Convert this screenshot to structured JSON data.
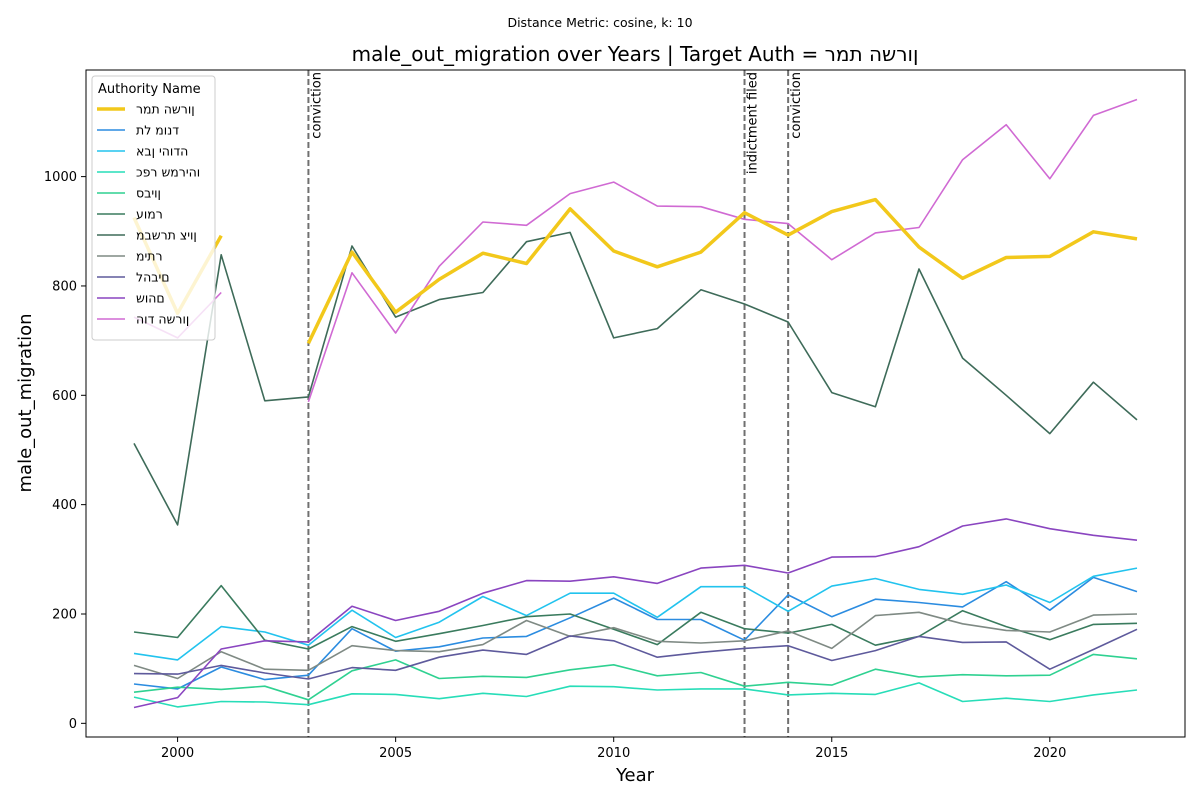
{
  "chart_data": {
    "type": "line",
    "suptitle": "Distance Metric: cosine, k: 10",
    "title": "male_out_migration over Years | Target Auth = ןורשה תמר",
    "xlabel": "Year",
    "ylabel": "male_out_migration",
    "xlim": [
      1997.9,
      2023.1
    ],
    "ylim": [
      -25,
      1195
    ],
    "xticks": [
      2000,
      2005,
      2010,
      2015,
      2020
    ],
    "yticks": [
      0,
      200,
      400,
      600,
      800,
      1000
    ],
    "grid": false,
    "legend": {
      "title": "Authority Name",
      "placement": "top-left"
    },
    "events": [
      {
        "x": 2003,
        "label": "conviction"
      },
      {
        "x": 2013,
        "label": "indictment filed"
      },
      {
        "x": 2014,
        "label": "conviction"
      }
    ],
    "x": [
      1999,
      2000,
      2001,
      2002,
      2003,
      2004,
      2005,
      2006,
      2007,
      2008,
      2009,
      2010,
      2011,
      2012,
      2013,
      2014,
      2015,
      2016,
      2017,
      2018,
      2019,
      2020,
      2021,
      2022
    ],
    "series": [
      {
        "name": "ןורשה תמר",
        "color": "#f2c81b",
        "target": true,
        "values": [
          925,
          750,
          892,
          null,
          695,
          862,
          752,
          812,
          860,
          841,
          941,
          864,
          835,
          862,
          934,
          893,
          936,
          958,
          871,
          814,
          852,
          854,
          899,
          886
        ]
      },
      {
        "name": "דנומ לת",
        "color": "#2b8ce0",
        "values": [
          72,
          63,
          103,
          80,
          88,
          173,
          132,
          140,
          156,
          159,
          193,
          229,
          190,
          190,
          152,
          235,
          195,
          227,
          221,
          213,
          259,
          207,
          267,
          241
        ]
      },
      {
        "name": "הדוהי ןבא",
        "color": "#22c3ee",
        "values": [
          128,
          116,
          177,
          167,
          143,
          207,
          157,
          185,
          232,
          197,
          238,
          238,
          194,
          250,
          250,
          205,
          251,
          265,
          245,
          236,
          253,
          221,
          269,
          284
        ]
      },
      {
        "name": "והירמש רפכ",
        "color": "#27ddb8",
        "values": [
          48,
          30,
          40,
          39,
          34,
          54,
          53,
          45,
          55,
          49,
          68,
          67,
          61,
          63,
          63,
          52,
          55,
          53,
          74,
          40,
          46,
          40,
          52,
          61
        ]
      },
      {
        "name": "ןויבס",
        "color": "#2fd191",
        "values": [
          57,
          66,
          62,
          68,
          43,
          96,
          116,
          82,
          86,
          84,
          98,
          107,
          87,
          93,
          68,
          75,
          70,
          99,
          85,
          89,
          87,
          88,
          126,
          118
        ]
      },
      {
        "name": "רמוע",
        "color": "#3a7b5e",
        "values": [
          167,
          157,
          252,
          152,
          136,
          177,
          150,
          164,
          179,
          195,
          200,
          172,
          144,
          203,
          173,
          165,
          181,
          143,
          159,
          206,
          177,
          153,
          181,
          183
        ]
      },
      {
        "name": "ןויצ תרשבמ",
        "color": "#3e6b59",
        "values": [
          512,
          363,
          857,
          590,
          597,
          873,
          743,
          775,
          788,
          881,
          898,
          705,
          722,
          793,
          767,
          734,
          605,
          579,
          831,
          668,
          600,
          530,
          624,
          555
        ]
      },
      {
        "name": "רתימ",
        "color": "#7f8a84",
        "values": [
          106,
          82,
          131,
          99,
          97,
          142,
          133,
          131,
          144,
          188,
          159,
          175,
          150,
          147,
          151,
          169,
          137,
          197,
          203,
          182,
          170,
          167,
          198,
          200
        ]
      },
      {
        "name": "םיבהל",
        "color": "#5e5a9c",
        "values": [
          91,
          90,
          106,
          92,
          81,
          102,
          97,
          121,
          134,
          126,
          160,
          151,
          121,
          130,
          137,
          142,
          115,
          133,
          159,
          148,
          149,
          99,
          135,
          172
        ]
      },
      {
        "name": "םהוש",
        "color": "#8a45c0",
        "values": [
          29,
          47,
          136,
          151,
          149,
          214,
          188,
          205,
          238,
          261,
          260,
          268,
          256,
          284,
          289,
          275,
          304,
          305,
          323,
          361,
          374,
          356,
          344,
          335
        ]
      },
      {
        "name": "ןורשה דוה",
        "color": "#d06ad3",
        "values": [
          743,
          705,
          788,
          null,
          588,
          824,
          714,
          836,
          917,
          911,
          969,
          990,
          946,
          945,
          922,
          914,
          848,
          897,
          907,
          1031,
          1095,
          996,
          1112,
          1141
        ]
      }
    ]
  }
}
